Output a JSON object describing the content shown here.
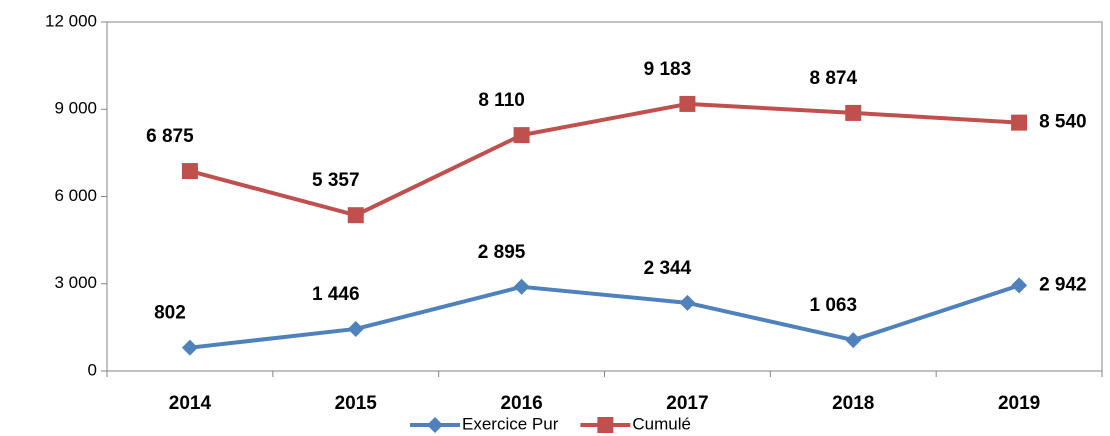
{
  "chart_data": {
    "type": "line",
    "categories": [
      "2014",
      "2015",
      "2016",
      "2017",
      "2018",
      "2019"
    ],
    "series": [
      {
        "name": "Exercice Pur",
        "color": "#4f81bd",
        "marker": "diamond",
        "values": [
          802,
          1446,
          2895,
          2344,
          1063,
          2942
        ],
        "value_labels": [
          "802",
          "1 446",
          "2 895",
          "2 344",
          "1 063",
          "2 942"
        ]
      },
      {
        "name": "Cumulé",
        "color": "#c0504d",
        "marker": "square",
        "values": [
          6875,
          5357,
          8110,
          9183,
          8874,
          8540
        ],
        "value_labels": [
          "6 875",
          "5 357",
          "8 110",
          "9 183",
          "8 874",
          "8 540"
        ]
      }
    ],
    "ylim": [
      0,
      12000
    ],
    "yticks": [
      0,
      {
        "value": 3000,
        "label": "3 000"
      },
      {
        "value": 6000,
        "label": "6 000"
      },
      {
        "value": 9000,
        "label": "9 000"
      },
      {
        "value": 12000,
        "label": "12 000"
      }
    ],
    "grid": false,
    "legend": "bottom"
  }
}
